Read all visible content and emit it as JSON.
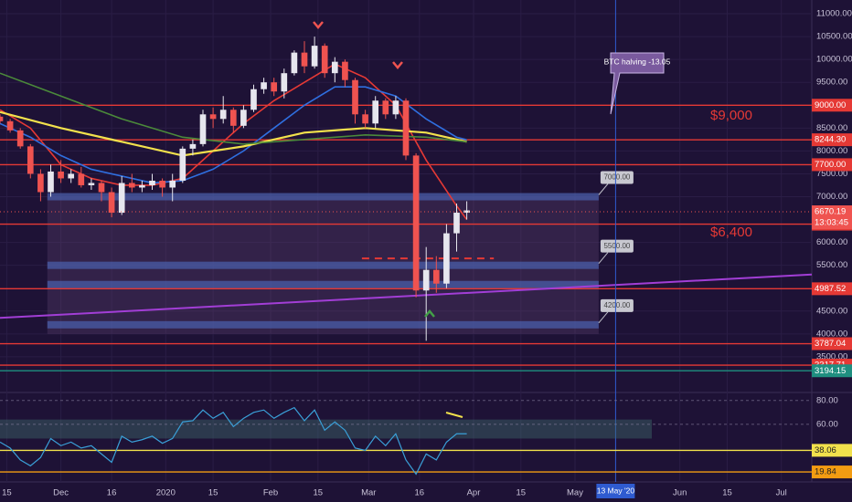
{
  "chart_data": [
    {
      "type": "candlestick",
      "up_color": "#e6e6ee",
      "down_color": "#ef5350",
      "x": [
        0,
        3,
        6,
        9,
        12,
        15,
        18,
        21,
        24,
        27,
        30,
        33,
        36,
        39,
        42,
        45,
        48,
        51,
        54,
        57,
        60,
        63,
        66,
        69,
        72,
        75,
        78,
        81,
        84,
        87,
        90,
        93,
        96,
        99,
        102,
        105,
        108,
        111,
        114,
        117,
        120,
        123,
        126,
        129,
        132,
        135,
        138
      ],
      "open": [
        8750,
        8650,
        8450,
        8100,
        7500,
        7100,
        7550,
        7400,
        7500,
        7250,
        7300,
        7100,
        6650,
        7300,
        7200,
        7250,
        7350,
        7200,
        7350,
        8050,
        8150,
        8800,
        8700,
        8900,
        8550,
        8900,
        9350,
        9500,
        9300,
        9700,
        10150,
        9850,
        10300,
        9700,
        9950,
        9550,
        8800,
        8600,
        9100,
        8800,
        9100,
        7900,
        4950,
        5400,
        5100,
        6200,
        6650
      ],
      "high": [
        8800,
        8700,
        8500,
        8150,
        7600,
        7700,
        7800,
        7600,
        7650,
        7400,
        7350,
        7200,
        7450,
        7500,
        7350,
        7500,
        7400,
        7500,
        8100,
        8250,
        8900,
        8950,
        9200,
        8950,
        9000,
        9450,
        9600,
        9600,
        9800,
        10200,
        10400,
        10500,
        10350,
        10050,
        10000,
        9600,
        8900,
        9200,
        9150,
        9200,
        9150,
        7950,
        5900,
        5700,
        6400,
        6850,
        6900
      ],
      "low": [
        8600,
        8400,
        8050,
        7400,
        6900,
        7000,
        7300,
        7300,
        7200,
        7150,
        6900,
        6550,
        6600,
        7100,
        7100,
        7150,
        7000,
        6900,
        7300,
        7900,
        8100,
        8500,
        8600,
        8400,
        8500,
        8850,
        9250,
        9200,
        9150,
        9650,
        9700,
        9800,
        9600,
        9500,
        9400,
        8600,
        8500,
        8500,
        8700,
        8700,
        7800,
        4800,
        3850,
        4900,
        5000,
        5800,
        6500
      ],
      "close": [
        8650,
        8450,
        8100,
        7500,
        7100,
        7550,
        7400,
        7500,
        7250,
        7300,
        7100,
        6650,
        7300,
        7200,
        7250,
        7350,
        7200,
        7350,
        8050,
        8150,
        8800,
        8700,
        8900,
        8550,
        8900,
        9350,
        9500,
        9300,
        9700,
        10150,
        9850,
        10300,
        9700,
        9950,
        9550,
        8800,
        8600,
        9100,
        8800,
        9100,
        7900,
        4950,
        5400,
        5100,
        6200,
        6650,
        6700
      ],
      "moving_averages": [
        {
          "color": "#e53935",
          "x": [
            0,
            9,
            18,
            27,
            36,
            45,
            54,
            63,
            72,
            81,
            90,
            99,
            108,
            117,
            126,
            135,
            138
          ],
          "values": [
            8900,
            8500,
            7700,
            7400,
            7250,
            7250,
            7400,
            8000,
            8600,
            9100,
            9500,
            9900,
            9600,
            9000,
            7800,
            6800,
            6500
          ]
        },
        {
          "color": "#2f6fe0",
          "x": [
            0,
            9,
            18,
            27,
            36,
            45,
            54,
            63,
            72,
            81,
            90,
            99,
            108,
            117,
            126,
            135,
            138
          ],
          "values": [
            8600,
            8300,
            7900,
            7600,
            7450,
            7300,
            7350,
            7600,
            8000,
            8500,
            9000,
            9400,
            9400,
            9200,
            8700,
            8300,
            8244
          ]
        },
        {
          "color": "#f2e14c",
          "x": [
            0,
            18,
            36,
            54,
            72,
            90,
            108,
            126,
            138
          ],
          "values": [
            8850,
            8500,
            8200,
            7900,
            8100,
            8400,
            8500,
            8400,
            8200
          ]
        },
        {
          "color": "#4b8a3a",
          "x": [
            0,
            18,
            36,
            54,
            72,
            90,
            108,
            126,
            138
          ],
          "values": [
            9700,
            9200,
            8700,
            8300,
            8150,
            8250,
            8350,
            8300,
            8200
          ]
        }
      ],
      "xlim": [
        0,
        240
      ],
      "ylim": [
        2720,
        11300
      ],
      "xticks": [
        {
          "value": 2,
          "label": "15"
        },
        {
          "value": 18,
          "label": "Dec"
        },
        {
          "value": 33,
          "label": "16"
        },
        {
          "value": 49,
          "label": "2020"
        },
        {
          "value": 63,
          "label": "15"
        },
        {
          "value": 80,
          "label": "Feb"
        },
        {
          "value": 94,
          "label": "15"
        },
        {
          "value": 109,
          "label": "Mar"
        },
        {
          "value": 124,
          "label": "16"
        },
        {
          "value": 140,
          "label": "Apr"
        },
        {
          "value": 154,
          "label": "15"
        },
        {
          "value": 170,
          "label": "May"
        },
        {
          "value": 201,
          "label": "Jun"
        },
        {
          "value": 215,
          "label": "15"
        },
        {
          "value": 231,
          "label": "Jul"
        }
      ],
      "yticks": [
        {
          "value": 11000,
          "label": "11000.00"
        },
        {
          "value": 10500,
          "label": "10500.00"
        },
        {
          "value": 10000,
          "label": "10000.00"
        },
        {
          "value": 9500,
          "label": "9500.00"
        },
        {
          "value": 8500,
          "label": "8500.00"
        },
        {
          "value": 8000,
          "label": "8000.00"
        },
        {
          "value": 7500,
          "label": "7500.00"
        },
        {
          "value": 7000,
          "label": "7000.00"
        },
        {
          "value": 6000,
          "label": "6000.00"
        },
        {
          "value": 5500,
          "label": "5500.00"
        },
        {
          "value": 4500,
          "label": "4500.00"
        },
        {
          "value": 4000,
          "label": "4000.00"
        },
        {
          "value": 3500,
          "label": "3500.00"
        }
      ],
      "levels": [
        {
          "value": 9000,
          "label": "9000.00",
          "color": "#e53935"
        },
        {
          "value": 8244.3,
          "label": "8244.30",
          "color": "#e53935"
        },
        {
          "value": 7700,
          "label": "7700.00",
          "color": "#e53935"
        },
        {
          "value": 6400,
          "label": "6400.00",
          "color": "#e53935"
        },
        {
          "value": 4987.52,
          "label": "4987.52",
          "color": "#e53935"
        },
        {
          "value": 3787.04,
          "label": "3787.04",
          "color": "#e53935"
        },
        {
          "value": 3317.71,
          "label": "3317.71",
          "color": "#e53935"
        },
        {
          "value": 3194.15,
          "label": "3194.15",
          "color": "#1f8f80"
        }
      ],
      "last_price": 6670.19,
      "countdown": "13:03:45",
      "zone_x": [
        14,
        177
      ],
      "zone_area": [
        4000,
        7000
      ],
      "zones": [
        {
          "value": 7000,
          "label": "7000.00"
        },
        {
          "value": 5500,
          "label": "5500.00"
        },
        {
          "value": 5080
        },
        {
          "value": 4200,
          "label": "4200.00"
        }
      ],
      "trendline": {
        "x": [
          0,
          240
        ],
        "values": [
          4350,
          5300
        ],
        "color": "#a23ed6"
      },
      "dashed_level": {
        "x": [
          107,
          146
        ],
        "value": 5650,
        "color": "#e53935"
      },
      "vline": {
        "x": 182,
        "label": "13 May '20"
      },
      "annotations": {
        "halving": "BTC halving -13.05",
        "level_9000": "$9,000",
        "level_6400": "$6,400"
      }
    },
    {
      "type": "line",
      "color": "#3aa0d8",
      "x": [
        0,
        3,
        6,
        9,
        12,
        15,
        18,
        21,
        24,
        27,
        30,
        33,
        36,
        39,
        42,
        45,
        48,
        51,
        54,
        57,
        60,
        63,
        66,
        69,
        72,
        75,
        78,
        81,
        84,
        87,
        90,
        93,
        96,
        99,
        102,
        105,
        108,
        111,
        114,
        117,
        120,
        123,
        126,
        129,
        132,
        135,
        138
      ],
      "values": [
        45,
        40,
        30,
        25,
        32,
        48,
        42,
        45,
        40,
        42,
        35,
        28,
        50,
        45,
        47,
        50,
        44,
        48,
        62,
        63,
        72,
        65,
        70,
        58,
        65,
        70,
        72,
        65,
        70,
        74,
        63,
        72,
        55,
        62,
        55,
        40,
        38,
        50,
        42,
        52,
        30,
        18,
        35,
        30,
        45,
        52,
        52
      ],
      "ylim": [
        13,
        86
      ],
      "yticks": [
        {
          "value": 80,
          "label": "80.00"
        },
        {
          "value": 60,
          "label": "60.00"
        }
      ],
      "band": [
        48,
        64
      ],
      "levels": [
        {
          "value": 38.06,
          "label": "38.06",
          "color": "#f2e14c"
        },
        {
          "value": 19.84,
          "label": "19.84",
          "color": "#f39c12"
        }
      ]
    }
  ]
}
